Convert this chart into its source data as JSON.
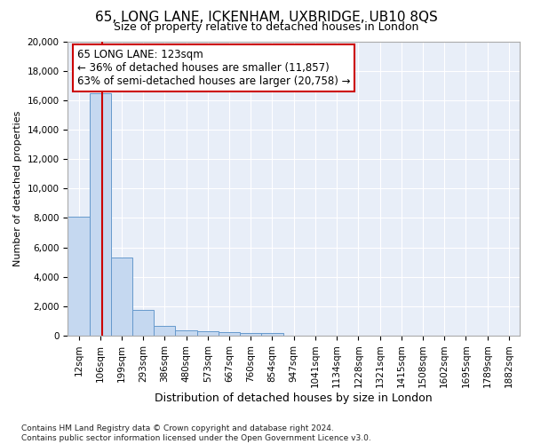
{
  "title": "65, LONG LANE, ICKENHAM, UXBRIDGE, UB10 8QS",
  "subtitle": "Size of property relative to detached houses in London",
  "xlabel": "Distribution of detached houses by size in London",
  "ylabel": "Number of detached properties",
  "bar_color": "#c5d8f0",
  "bar_edge_color": "#6699cc",
  "bg_color": "#e8eef8",
  "grid_color": "#ffffff",
  "categories": [
    "12sqm",
    "106sqm",
    "199sqm",
    "293sqm",
    "386sqm",
    "480sqm",
    "573sqm",
    "667sqm",
    "760sqm",
    "854sqm",
    "947sqm",
    "1041sqm",
    "1134sqm",
    "1228sqm",
    "1321sqm",
    "1415sqm",
    "1508sqm",
    "1602sqm",
    "1695sqm",
    "1789sqm",
    "1882sqm"
  ],
  "values": [
    8100,
    16500,
    5300,
    1750,
    650,
    350,
    280,
    210,
    200,
    150,
    0,
    0,
    0,
    0,
    0,
    0,
    0,
    0,
    0,
    0,
    0
  ],
  "ylim": [
    0,
    20000
  ],
  "yticks": [
    0,
    2000,
    4000,
    6000,
    8000,
    10000,
    12000,
    14000,
    16000,
    18000,
    20000
  ],
  "property_line_x": 1.1,
  "annotation_line1": "65 LONG LANE: 123sqm",
  "annotation_line2": "← 36% of detached houses are smaller (11,857)",
  "annotation_line3": "63% of semi-detached houses are larger (20,758) →",
  "footnote": "Contains HM Land Registry data © Crown copyright and database right 2024.\nContains public sector information licensed under the Open Government Licence v3.0.",
  "red_line_color": "#cc0000",
  "annotation_box_edge": "#cc0000",
  "title_fontsize": 11,
  "subtitle_fontsize": 9,
  "ylabel_fontsize": 8,
  "xlabel_fontsize": 9,
  "tick_fontsize": 7.5,
  "annotation_fontsize": 8.5,
  "footnote_fontsize": 6.5
}
